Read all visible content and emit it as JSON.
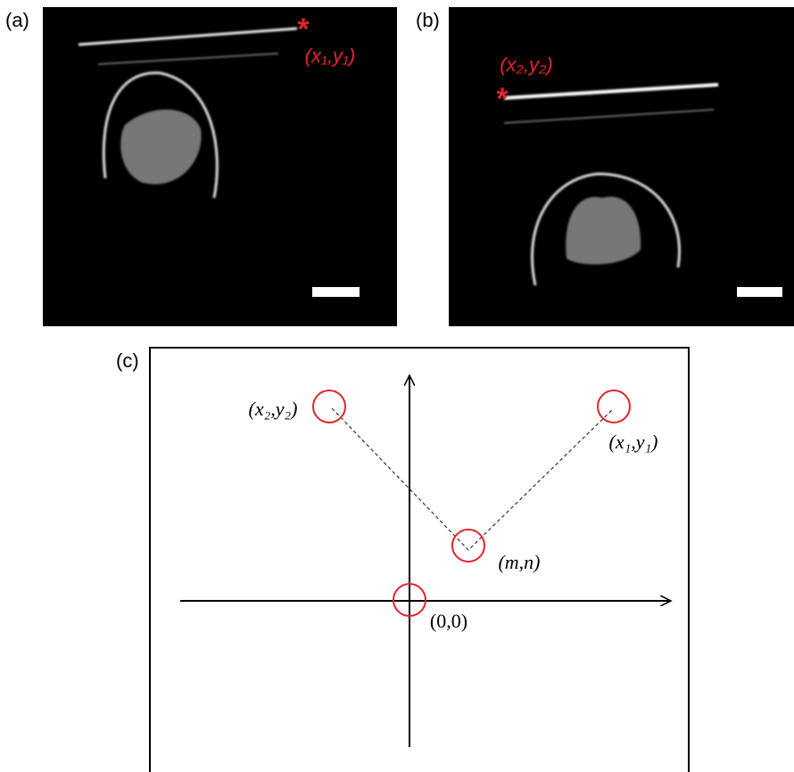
{
  "panels": [
    {
      "label": "(a)",
      "annotation": "(x₁,y₁)"
    },
    {
      "label": "(b)",
      "annotation": "(x₂,y₂)"
    },
    {
      "label": "(c)",
      "points": [
        "(x₂,y₂)",
        "(x₁,y₁)",
        "(m,n)",
        "(0,0)"
      ]
    }
  ]
}
